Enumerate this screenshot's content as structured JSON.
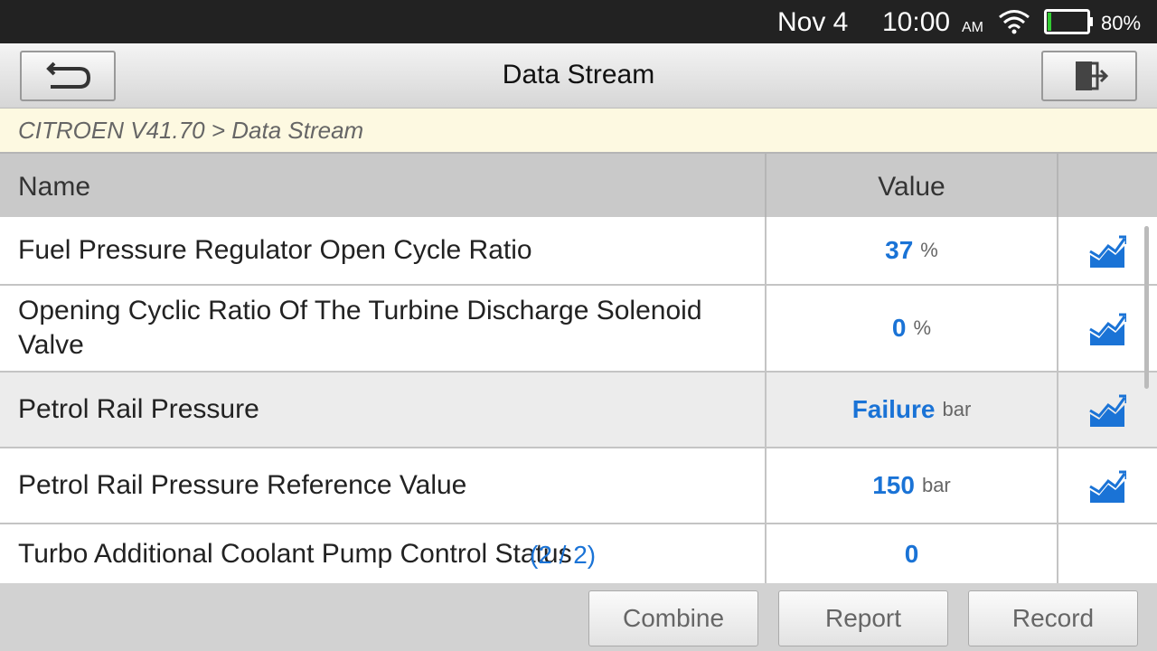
{
  "status_bar": {
    "date": "Nov 4",
    "time": "10:00",
    "meridiem": "AM",
    "battery": "80%"
  },
  "header": {
    "title": "Data Stream"
  },
  "breadcrumb": "CITROEN V41.70 > Data Stream",
  "table": {
    "columns": [
      "Name",
      "Value"
    ],
    "rows": [
      {
        "name": "Fuel Pressure Regulator Open Cycle Ratio",
        "value": "37",
        "unit": "%"
      },
      {
        "name": "Opening Cyclic Ratio Of The Turbine Discharge Solenoid Valve",
        "value": "0",
        "unit": "%"
      },
      {
        "name": "Petrol Rail Pressure",
        "value": "Failure",
        "unit": "bar"
      },
      {
        "name": "Petrol Rail Pressure Reference Value",
        "value": "150",
        "unit": "bar"
      },
      {
        "name": "Turbo Additional Coolant Pump Control Status",
        "value": "0"
      }
    ]
  },
  "page_indicator": "(2 / 2)",
  "buttons": [
    "Combine",
    "Report",
    "Record"
  ]
}
